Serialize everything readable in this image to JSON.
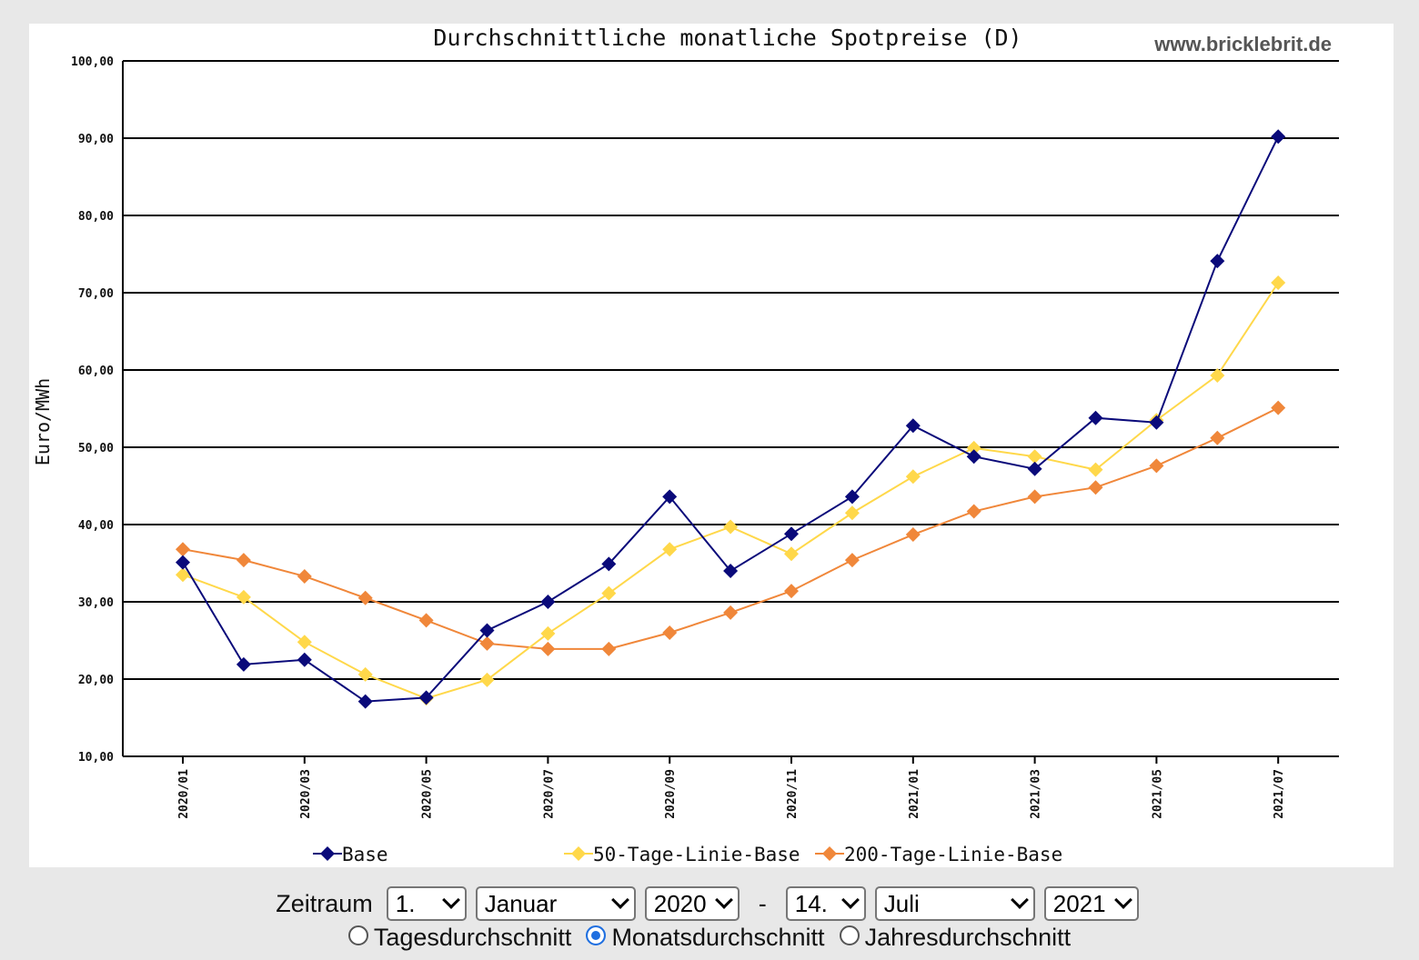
{
  "chart_data": {
    "type": "line",
    "title": "Durchschnittliche monatliche Spotpreise (D)",
    "watermark": "www.bricklebrit.de",
    "ylabel": "Euro/MWh",
    "xlabel": "",
    "ylim": [
      10,
      100
    ],
    "y_ticks": [
      "10,00",
      "20,00",
      "30,00",
      "40,00",
      "50,00",
      "60,00",
      "70,00",
      "80,00",
      "90,00",
      "100,00"
    ],
    "categories": [
      "2020/01",
      "2020/02",
      "2020/03",
      "2020/04",
      "2020/05",
      "2020/06",
      "2020/07",
      "2020/08",
      "2020/09",
      "2020/10",
      "2020/11",
      "2020/12",
      "2021/01",
      "2021/02",
      "2021/03",
      "2021/04",
      "2021/05",
      "2021/06",
      "2021/07"
    ],
    "x_tick_labels": [
      "2020/01",
      "2020/03",
      "2020/05",
      "2020/07",
      "2020/09",
      "2020/11",
      "2021/01",
      "2021/03",
      "2021/05",
      "2021/07"
    ],
    "grid": true,
    "legend_position": "bottom",
    "series": [
      {
        "name": "Base",
        "color": "#0a0a7a",
        "values": [
          35.1,
          21.9,
          22.5,
          17.1,
          17.6,
          26.3,
          30.0,
          34.9,
          43.6,
          34.0,
          38.8,
          43.6,
          52.8,
          48.8,
          47.2,
          53.8,
          53.2,
          74.1,
          90.2
        ]
      },
      {
        "name": "50-Tage-Linie-Base",
        "color": "#ffd84a",
        "values": [
          33.5,
          30.6,
          24.8,
          20.6,
          17.5,
          19.9,
          25.9,
          31.1,
          36.8,
          39.7,
          36.2,
          41.5,
          46.2,
          49.9,
          48.8,
          47.1,
          53.5,
          59.3,
          71.3
        ]
      },
      {
        "name": "200-Tage-Linie-Base",
        "color": "#f0873a",
        "values": [
          36.8,
          35.4,
          33.3,
          30.5,
          27.6,
          24.6,
          23.9,
          23.9,
          26.0,
          28.6,
          31.4,
          35.4,
          38.7,
          41.7,
          43.6,
          44.8,
          47.6,
          51.2,
          55.1
        ]
      }
    ]
  },
  "controls": {
    "zeitraum_label": "Zeitraum",
    "from_day": "1.",
    "from_month": "Januar",
    "from_year": "2020",
    "separator": "-",
    "to_day": "14.",
    "to_month": "Juli",
    "to_year": "2021"
  },
  "radios": [
    {
      "label": "Tagesdurchschnitt",
      "checked": false
    },
    {
      "label": "Monatsdurchschnitt",
      "checked": true
    },
    {
      "label": "Jahresdurchschnitt",
      "checked": false
    }
  ]
}
